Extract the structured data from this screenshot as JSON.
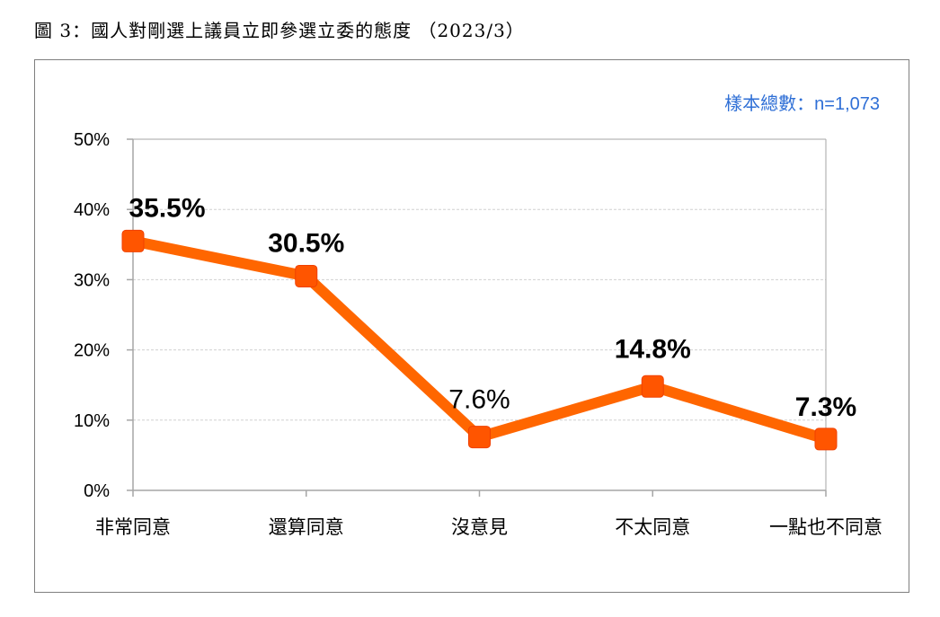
{
  "figure": {
    "title": "圖 3：國人對剛選上議員立即參選立委的態度 （2023/3）",
    "sample_note": "樣本總數：n=1,073"
  },
  "colors": {
    "line": "#ff6600",
    "marker": "#ff5500",
    "grid": "#d0d0d0",
    "axis": "#a6a6a6",
    "sample_note": "#2f6fd6"
  },
  "chart_data": {
    "type": "line",
    "categories": [
      "非常同意",
      "還算同意",
      "沒意見",
      "不太同意",
      "一點也不同意"
    ],
    "values": [
      35.5,
      30.5,
      7.6,
      14.8,
      7.3
    ],
    "data_labels": [
      "35.5%",
      "30.5%",
      "7.6%",
      "14.8%",
      "7.3%"
    ],
    "y_ticks": [
      {
        "value": 0,
        "label": "0%"
      },
      {
        "value": 10,
        "label": "10%"
      },
      {
        "value": 20,
        "label": "20%"
      },
      {
        "value": 30,
        "label": "30%"
      },
      {
        "value": 40,
        "label": "40%"
      },
      {
        "value": 50,
        "label": "50%"
      }
    ],
    "ylim": [
      0,
      50
    ],
    "grid": true,
    "legend": "none"
  }
}
